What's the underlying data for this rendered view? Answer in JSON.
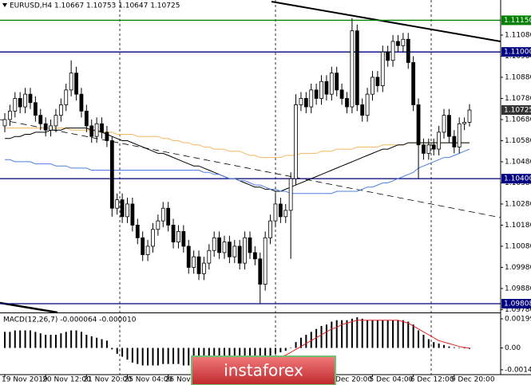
{
  "chart_data": {
    "type": "candlestick",
    "title": "EURUSD,H4  1.10667 1.10753 1.10647 1.10725",
    "categories": [
      "19 Nov 2019",
      null,
      null,
      null,
      null,
      null,
      null,
      null,
      "20 Nov 12:00",
      null,
      null,
      null,
      null,
      null,
      null,
      null,
      "21 Nov 20:00",
      null,
      null,
      null,
      null,
      null,
      null,
      null,
      "25 Nov 04:00",
      null,
      null,
      null,
      null,
      null,
      null,
      null,
      "26 Nov 12:00",
      null,
      null,
      null,
      null,
      null,
      null,
      null,
      null,
      null,
      null,
      null,
      null,
      null,
      null,
      null,
      null,
      null,
      null,
      null,
      null,
      null,
      null,
      null,
      null,
      null,
      null,
      null,
      null,
      null,
      null,
      null,
      "3 Dec 20:00",
      null,
      null,
      null,
      null,
      null,
      null,
      null,
      "5 Dec 04:00",
      null,
      null,
      null,
      null,
      null,
      null,
      null,
      "6 Dec 12:00",
      null,
      null,
      null,
      null,
      null,
      null,
      null,
      "9 Dec 20:00",
      null,
      null,
      null
    ],
    "open": [
      1.1065,
      1.1068,
      1.1072,
      1.1078,
      1.1074,
      1.108,
      1.1076,
      1.107,
      1.1066,
      1.1063,
      1.1065,
      1.107,
      1.1075,
      1.1082,
      1.109,
      1.108,
      1.1072,
      1.1065,
      1.106,
      1.1066,
      1.1062,
      1.1058,
      1.1026,
      1.103,
      1.1022,
      1.1028,
      1.1018,
      1.1012,
      1.1004,
      1.1008,
      1.1016,
      1.102,
      1.1026,
      1.1018,
      1.101,
      1.1015,
      1.1008,
      1.0998,
      1.1003,
      1.0995,
      1.1,
      1.1006,
      1.1012,
      1.1005,
      1.101,
      1.1003,
      1.1008,
      1.1,
      1.1012,
      1.1005,
      1.1002,
      1.099,
      1.1012,
      1.102,
      1.1028,
      1.1022,
      1.1025,
      1.104,
      1.1075,
      1.1078,
      1.1074,
      1.1082,
      1.1078,
      1.1086,
      1.108,
      1.109,
      1.1082,
      1.1078,
      1.1074,
      1.111,
      1.1075,
      1.107,
      1.108,
      1.1088,
      1.1084,
      1.11,
      1.1096,
      1.1105,
      1.1103,
      1.1106,
      1.1095,
      1.1075,
      1.1056,
      1.1052,
      1.1056,
      1.1054,
      1.1062,
      1.107,
      1.106,
      1.1055,
      1.1066,
      1.10667
    ],
    "high": [
      1.1071,
      1.1075,
      1.1081,
      1.1081,
      1.1083,
      1.1083,
      1.1079,
      1.1073,
      1.1069,
      1.1068,
      1.1073,
      1.1078,
      1.1085,
      1.1096,
      1.1093,
      1.1083,
      1.1075,
      1.1068,
      1.1069,
      1.1069,
      1.1065,
      1.106,
      1.1033,
      1.1033,
      1.1031,
      1.1031,
      1.1021,
      1.1015,
      1.1011,
      1.1019,
      1.1023,
      1.1029,
      1.1029,
      1.1021,
      1.1018,
      1.1018,
      1.1011,
      1.1006,
      1.1006,
      1.1003,
      1.1009,
      1.1015,
      1.1015,
      1.1013,
      1.1013,
      1.1011,
      1.1011,
      1.1015,
      1.1015,
      1.1008,
      1.1005,
      1.1015,
      1.1023,
      1.1033,
      1.1031,
      1.1028,
      1.1043,
      1.108,
      1.1081,
      1.1081,
      1.1085,
      1.1085,
      1.1089,
      1.1089,
      1.1093,
      1.1093,
      1.1085,
      1.1081,
      1.1116,
      1.1113,
      1.1078,
      1.1083,
      1.1091,
      1.1091,
      1.1103,
      1.1103,
      1.1108,
      1.1108,
      1.1109,
      1.1109,
      1.1098,
      1.1078,
      1.1059,
      1.1059,
      1.1059,
      1.1065,
      1.1073,
      1.1073,
      1.1063,
      1.1069,
      1.1069,
      1.10753
    ],
    "low": [
      1.1062,
      1.1065,
      1.1069,
      1.1071,
      1.1071,
      1.1073,
      1.1067,
      1.1063,
      1.106,
      1.106,
      1.1062,
      1.1067,
      1.1072,
      1.1079,
      1.1077,
      1.1069,
      1.1062,
      1.1057,
      1.1057,
      1.1059,
      1.1055,
      1.1022,
      1.1023,
      1.1019,
      1.1019,
      1.1015,
      1.1009,
      1.1001,
      1.1001,
      1.1005,
      1.1013,
      1.1017,
      1.1015,
      1.1007,
      1.1007,
      1.1005,
      1.0995,
      1.0995,
      1.0992,
      1.0992,
      1.0997,
      1.1003,
      1.1002,
      1.1002,
      1.1,
      1.1,
      1.0997,
      1.0997,
      1.1002,
      1.0999,
      1.0981,
      1.0987,
      1.1009,
      1.1017,
      1.1019,
      1.1019,
      1.1002,
      1.1037,
      1.1072,
      1.1071,
      1.1071,
      1.1075,
      1.1075,
      1.1077,
      1.1077,
      1.1079,
      1.1075,
      1.1071,
      1.1071,
      1.1072,
      1.1067,
      1.1067,
      1.1077,
      1.1081,
      1.1081,
      1.1093,
      1.1093,
      1.11,
      1.11,
      1.1092,
      1.1072,
      1.104,
      1.1049,
      1.1049,
      1.1051,
      1.1051,
      1.1059,
      1.1057,
      1.1052,
      1.1052,
      1.1063,
      1.10647
    ],
    "close": [
      1.1068,
      1.1072,
      1.1078,
      1.1074,
      1.108,
      1.1076,
      1.107,
      1.1066,
      1.1063,
      1.1065,
      1.107,
      1.1075,
      1.1082,
      1.109,
      1.108,
      1.1072,
      1.1065,
      1.106,
      1.1066,
      1.1062,
      1.1058,
      1.1026,
      1.103,
      1.1022,
      1.1028,
      1.1018,
      1.1012,
      1.1004,
      1.1008,
      1.1016,
      1.102,
      1.1026,
      1.1018,
      1.101,
      1.1015,
      1.1008,
      1.0998,
      1.1003,
      1.0995,
      1.1,
      1.1006,
      1.1012,
      1.1005,
      1.101,
      1.1003,
      1.1008,
      1.1,
      1.1012,
      1.1005,
      1.1002,
      1.099,
      1.1012,
      1.102,
      1.1028,
      1.1022,
      1.1025,
      1.104,
      1.1075,
      1.1078,
      1.1074,
      1.1082,
      1.1078,
      1.1086,
      1.108,
      1.109,
      1.1082,
      1.1078,
      1.1074,
      1.111,
      1.1075,
      1.107,
      1.108,
      1.1088,
      1.1084,
      1.11,
      1.1096,
      1.1105,
      1.1103,
      1.1106,
      1.1095,
      1.1075,
      1.1056,
      1.1052,
      1.1056,
      1.1054,
      1.1062,
      1.107,
      1.106,
      1.1055,
      1.1066,
      1.10667,
      1.10725
    ],
    "bull_fill": "#ffffff",
    "bear_fill": "#000000",
    "series": [
      {
        "color": "#f4b860",
        "values": [
          1.1064,
          1.1064,
          1.1064,
          1.1064,
          1.1064,
          1.1064,
          1.1064,
          1.1064,
          1.1064,
          1.1064,
          1.1064,
          1.1064,
          1.1064,
          1.1063,
          1.1063,
          1.1063,
          1.1063,
          1.1063,
          1.1062,
          1.1062,
          1.1062,
          1.1062,
          1.1061,
          1.1061,
          1.1061,
          1.1061,
          1.106,
          1.106,
          1.106,
          1.106,
          1.106,
          1.1059,
          1.1059,
          1.1058,
          1.1058,
          1.1057,
          1.1057,
          1.1056,
          1.1056,
          1.1055,
          1.1055,
          1.1054,
          1.1054,
          1.1054,
          1.1053,
          1.1053,
          1.1053,
          1.1052,
          1.1051,
          1.1051,
          1.105,
          1.105,
          1.105,
          1.105,
          1.105,
          1.1051,
          1.1051,
          1.1051,
          1.1052,
          1.1052,
          1.1052,
          1.1052,
          1.1053,
          1.1053,
          1.1053,
          1.1054,
          1.1054,
          1.1054,
          1.1054,
          1.1055,
          1.1055,
          1.1055,
          1.1055,
          1.1055,
          1.1056,
          1.1056,
          1.1056,
          1.1056,
          1.1056,
          1.1057,
          1.1057,
          1.1057,
          1.1057,
          1.1057,
          1.1057,
          1.1057,
          1.1057,
          1.1057,
          1.1057,
          1.1057,
          1.1057,
          1.1057
        ]
      },
      {
        "color": "#000000",
        "values": [
          1.1059,
          1.1059,
          1.106,
          1.106,
          1.1061,
          1.1061,
          1.1062,
          1.1062,
          1.1062,
          1.1063,
          1.1063,
          1.1063,
          1.1064,
          1.1064,
          1.1064,
          1.1064,
          1.1064,
          1.1063,
          1.1063,
          1.1062,
          1.1061,
          1.106,
          1.1059,
          1.1058,
          1.1058,
          1.1057,
          1.1056,
          1.1055,
          1.1054,
          1.1053,
          1.1052,
          1.1052,
          1.1051,
          1.105,
          1.1049,
          1.1048,
          1.1047,
          1.1046,
          1.1046,
          1.1045,
          1.1044,
          1.1043,
          1.1042,
          1.1041,
          1.104,
          1.104,
          1.1039,
          1.1038,
          1.1037,
          1.1036,
          1.1036,
          1.1035,
          1.1035,
          1.1034,
          1.1034,
          1.1035,
          1.1036,
          1.1037,
          1.1038,
          1.1039,
          1.104,
          1.1041,
          1.1042,
          1.1043,
          1.1044,
          1.1045,
          1.1046,
          1.1047,
          1.1048,
          1.1049,
          1.105,
          1.1051,
          1.1052,
          1.1053,
          1.1054,
          1.1054,
          1.1055,
          1.1056,
          1.1056,
          1.1057,
          1.1057,
          1.1057,
          1.1057,
          1.1057,
          1.1057,
          1.1057,
          1.1057,
          1.1057,
          1.1057,
          1.1057,
          1.1057,
          1.1057
        ]
      },
      {
        "color": "#4f7fe6",
        "values": [
          1.1049,
          1.1049,
          1.1048,
          1.1048,
          1.1048,
          1.1048,
          1.1047,
          1.1047,
          1.1047,
          1.1047,
          1.1046,
          1.1046,
          1.1046,
          1.1045,
          1.1045,
          1.1045,
          1.1045,
          1.1044,
          1.1044,
          1.1044,
          1.1044,
          1.1044,
          1.1044,
          1.1044,
          1.1044,
          1.1044,
          1.1044,
          1.1044,
          1.1044,
          1.1044,
          1.1044,
          1.1044,
          1.1044,
          1.1044,
          1.1044,
          1.1044,
          1.1044,
          1.1044,
          1.1044,
          1.1043,
          1.1043,
          1.1042,
          1.1042,
          1.1041,
          1.104,
          1.104,
          1.1039,
          1.1039,
          1.1038,
          1.1037,
          1.1037,
          1.1036,
          1.1035,
          1.1035,
          1.1034,
          1.1034,
          1.1033,
          1.1033,
          1.1033,
          1.1033,
          1.1033,
          1.1033,
          1.1033,
          1.1033,
          1.1033,
          1.1034,
          1.1034,
          1.1034,
          1.1034,
          1.1034,
          1.1035,
          1.1036,
          1.1036,
          1.1037,
          1.1038,
          1.1038,
          1.1039,
          1.104,
          1.1041,
          1.1042,
          1.1043,
          1.1045,
          1.1046,
          1.1047,
          1.1048,
          1.1049,
          1.105,
          1.105,
          1.1051,
          1.1052,
          1.1053,
          1.1054
        ]
      }
    ],
    "ylim": [
      1.09774,
      1.11246
    ],
    "yticks": [
      {
        "value": 1.1108,
        "label": "1.11080"
      },
      {
        "value": 1.1098,
        "label": "1.10980"
      },
      {
        "value": 1.1088,
        "label": "1.10880"
      },
      {
        "value": 1.1078,
        "label": "1.10780"
      },
      {
        "value": 1.1068,
        "label": "1.10680"
      },
      {
        "value": 1.1058,
        "label": "1.10580"
      },
      {
        "value": 1.1048,
        "label": "1.10480"
      },
      {
        "value": 1.1038,
        "label": "1.10380"
      },
      {
        "value": 1.1028,
        "label": "1.10280"
      },
      {
        "value": 1.1018,
        "label": "1.10180"
      },
      {
        "value": 1.1008,
        "label": "1.10080"
      },
      {
        "value": 1.0998,
        "label": "1.09980"
      },
      {
        "value": 1.0988,
        "label": "1.09880"
      },
      {
        "value": 1.0978,
        "label": "1.09780"
      }
    ],
    "levels": [
      {
        "value": 1.1115,
        "label": "1.11150",
        "color": "#008000",
        "line": true
      },
      {
        "value": 1.11,
        "label": "1.11000",
        "color": "#000080",
        "line": true
      },
      {
        "value": 1.10725,
        "label": "1.10725",
        "color": "#333333",
        "line": false
      },
      {
        "value": 1.104,
        "label": "1.10400",
        "color": "#000080",
        "line": true
      },
      {
        "value": 1.09808,
        "label": "1.09808",
        "color": "#000080",
        "line": true
      }
    ],
    "macd": {
      "title": "MACD(12,26,7) -0.000064 -0.000010",
      "histogram_color": "#000000",
      "signal_color": "#e02020",
      "histogram": [
        0.0011,
        0.0011,
        0.0012,
        0.0012,
        0.0012,
        0.0012,
        0.0011,
        0.001,
        0.0009,
        0.0009,
        0.0009,
        0.001,
        0.0011,
        0.0012,
        0.0012,
        0.0011,
        0.0009,
        0.0008,
        0.0007,
        0.0006,
        0.0005,
        -0.0001,
        -0.0004,
        -0.0006,
        -0.0008,
        -0.001,
        -0.0011,
        -0.0012,
        -0.0012,
        -0.0012,
        -0.0012,
        -0.0011,
        -0.0011,
        -0.0011,
        -0.0011,
        -0.0012,
        -0.0012,
        -0.0012,
        -0.0012,
        -0.0012,
        -0.0011,
        -0.0011,
        -0.001,
        -0.001,
        -0.001,
        -0.001,
        -0.001,
        -0.0009,
        -0.0009,
        -0.0009,
        -0.001,
        -0.0008,
        -0.0006,
        -0.0004,
        -0.0003,
        -0.0002,
        0.0,
        0.0004,
        0.0007,
        0.0009,
        0.0011,
        0.0013,
        0.0015,
        0.0016,
        0.0018,
        0.0019,
        0.0019,
        0.0019,
        0.002,
        0.0021,
        0.002,
        0.0019,
        0.0019,
        0.0019,
        0.0019,
        0.0019,
        0.0019,
        0.0019,
        0.0019,
        0.0018,
        0.0016,
        0.0012,
        0.0009,
        0.0006,
        0.0004,
        0.0003,
        0.0002,
        0.0001,
        5e-05,
        2e-05,
        -3e-05,
        -6.4e-05
      ],
      "signal": [
        null,
        null,
        null,
        null,
        null,
        null,
        null,
        null,
        null,
        null,
        null,
        null,
        null,
        null,
        null,
        null,
        null,
        null,
        null,
        null,
        null,
        null,
        null,
        null,
        null,
        null,
        null,
        null,
        null,
        null,
        null,
        null,
        null,
        null,
        null,
        null,
        null,
        null,
        null,
        null,
        null,
        null,
        null,
        null,
        null,
        -0.0011,
        -0.0011,
        -0.001,
        -0.001,
        -0.001,
        -0.0009,
        -0.0009,
        -0.0008,
        -0.0007,
        -0.0006,
        -0.0005,
        -0.0003,
        -0.0001,
        0.0001,
        0.0003,
        0.0005,
        0.0007,
        0.0009,
        0.0011,
        0.0013,
        0.0014,
        0.0016,
        0.0017,
        0.0018,
        0.0019,
        0.0019,
        0.0019,
        0.0019,
        0.0019,
        0.0019,
        0.0019,
        0.0019,
        0.0019,
        0.0018,
        0.0017,
        0.0015,
        0.0013,
        0.0011,
        0.0009,
        0.0007,
        0.0005,
        0.0004,
        0.0003,
        0.0002,
        0.0001,
        3e-05,
        -1e-05
      ],
      "y2lim": [
        -0.00183,
        0.00232
      ],
      "y2ticks": [
        0.001995,
        {
          "value": 0,
          "label": "0.00"
        },
        -0.001497
      ]
    },
    "watermark": "instaforex"
  }
}
